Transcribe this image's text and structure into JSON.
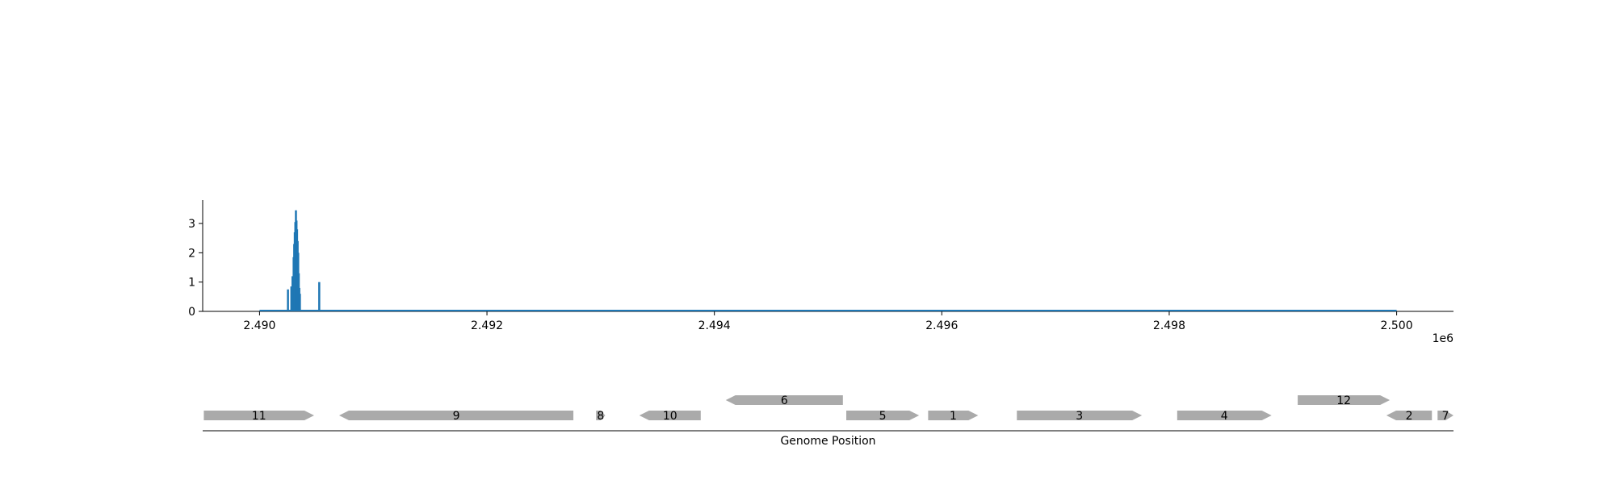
{
  "chart_data": [
    {
      "type": "bar",
      "title": "",
      "xlabel": "",
      "ylabel": "",
      "x_offset_label": "1e6",
      "xlim": [
        2489500,
        2500500
      ],
      "ylim": [
        0,
        3.8
      ],
      "x_ticks": [
        2490000,
        2492000,
        2494000,
        2496000,
        2498000,
        2500000
      ],
      "x_tick_labels": [
        "2.490",
        "2.492",
        "2.494",
        "2.496",
        "2.498",
        "2.500"
      ],
      "y_ticks": [
        0,
        1,
        2,
        3
      ],
      "y_tick_labels": [
        "0",
        "1",
        "2",
        "3"
      ],
      "grid": false,
      "color": "#1f77b4",
      "baseline_range": [
        2490000,
        2500000
      ],
      "x": [
        2490250,
        2490280,
        2490290,
        2490300,
        2490305,
        2490310,
        2490315,
        2490320,
        2490325,
        2490330,
        2490335,
        2490340,
        2490345,
        2490350,
        2490355,
        2490525
      ],
      "values": [
        0.75,
        0.85,
        1.2,
        1.85,
        2.3,
        2.7,
        3.05,
        3.45,
        3.1,
        2.8,
        2.4,
        2.0,
        1.3,
        0.8,
        0.6,
        1.0
      ]
    },
    {
      "type": "gene-track",
      "xlabel": "Genome Position",
      "xlim": [
        2489500,
        2500500
      ],
      "color": "#aaaaaa",
      "genes": [
        {
          "label": "11",
          "start": 2489510,
          "end": 2490480,
          "strand": "+",
          "row": 0
        },
        {
          "label": "9",
          "start": 2490700,
          "end": 2492760,
          "strand": "-",
          "row": 0
        },
        {
          "label": "8",
          "start": 2492960,
          "end": 2493040,
          "strand": "+",
          "row": 0
        },
        {
          "label": "10",
          "start": 2493340,
          "end": 2493880,
          "strand": "-",
          "row": 0
        },
        {
          "label": "6",
          "start": 2494100,
          "end": 2495130,
          "strand": "-",
          "row": 1
        },
        {
          "label": "5",
          "start": 2495160,
          "end": 2495800,
          "strand": "+",
          "row": 0
        },
        {
          "label": "1",
          "start": 2495880,
          "end": 2496320,
          "strand": "+",
          "row": 0
        },
        {
          "label": "3",
          "start": 2496660,
          "end": 2497760,
          "strand": "+",
          "row": 0
        },
        {
          "label": "4",
          "start": 2498070,
          "end": 2498900,
          "strand": "+",
          "row": 0
        },
        {
          "label": "12",
          "start": 2499130,
          "end": 2499940,
          "strand": "+",
          "row": 1
        },
        {
          "label": "2",
          "start": 2499910,
          "end": 2500310,
          "strand": "-",
          "row": 0
        },
        {
          "label": "7",
          "start": 2500360,
          "end": 2500500,
          "strand": "+",
          "row": 0
        }
      ]
    }
  ]
}
